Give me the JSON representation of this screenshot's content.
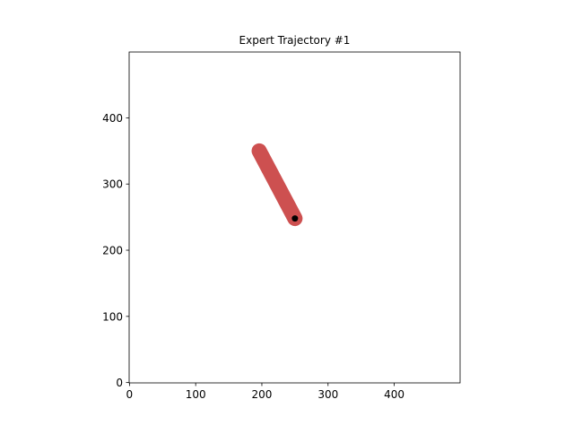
{
  "chart_data": {
    "type": "line",
    "title": "Expert Trajectory #1",
    "xlabel": "",
    "ylabel": "",
    "xlim": [
      -0.5,
      499.5
    ],
    "ylim": [
      499.5,
      -0.5
    ],
    "y_inverted": true,
    "grid": false,
    "x_ticks": [
      0,
      100,
      200,
      300,
      400
    ],
    "y_ticks": [
      0,
      100,
      200,
      300,
      400
    ],
    "series": [
      {
        "x": [
          196,
          250
        ],
        "y": [
          350,
          248
        ],
        "color": "#cd5050"
      }
    ],
    "points": [
      {
        "x": 250,
        "y": 248,
        "color": "#000000"
      }
    ]
  }
}
